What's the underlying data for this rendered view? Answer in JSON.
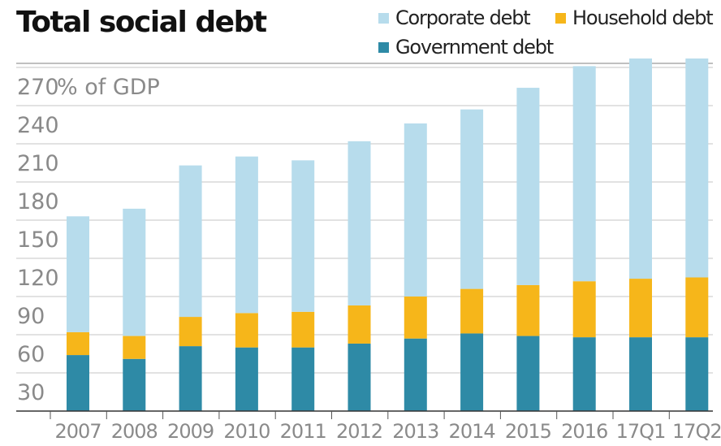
{
  "chart_data": {
    "type": "bar",
    "stacked": true,
    "title": "Total social debt",
    "unit_label": "% of GDP",
    "categories": [
      "2007",
      "2008",
      "2009",
      "2010",
      "2011",
      "2012",
      "2013",
      "2014",
      "2015",
      "2016",
      "17Q1",
      "17Q2"
    ],
    "series": [
      {
        "name": "Government debt",
        "color": "#2e8aa6",
        "values": [
          44,
          41,
          51,
          50,
          50,
          53,
          57,
          61,
          59,
          58,
          58,
          58
        ]
      },
      {
        "name": "Household debt",
        "color": "#f6b61a",
        "values": [
          18,
          18,
          23,
          27,
          28,
          30,
          33,
          35,
          40,
          44,
          46,
          47
        ]
      },
      {
        "name": "Corporate debt",
        "color": "#b7dcec",
        "values": [
          91,
          100,
          119,
          123,
          119,
          129,
          136,
          141,
          155,
          169,
          173,
          172
        ]
      }
    ],
    "ylim": [
      0,
      270
    ],
    "yticks": [
      30,
      60,
      90,
      120,
      150,
      180,
      210,
      240,
      270
    ],
    "grid": true,
    "legend_position": "top-right",
    "legend_order": [
      "Corporate debt",
      "Household debt",
      "Government debt"
    ]
  }
}
